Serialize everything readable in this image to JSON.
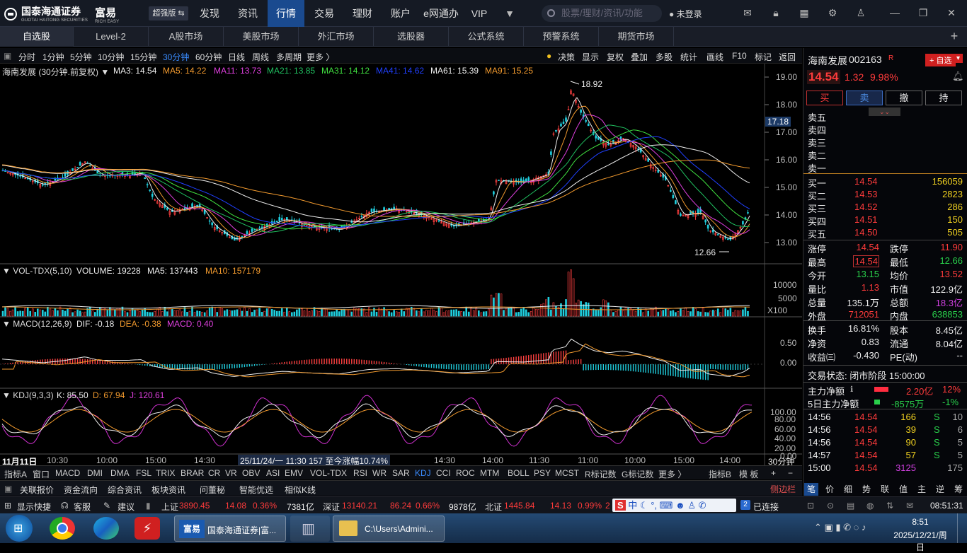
{
  "app": {
    "logo_name": "国泰海通证券",
    "logo_sub": "GUOTAI HAITONG SECURITIES",
    "brand": "富易",
    "brand_sub": "RICH EASY",
    "edition": "超强版 ⇆"
  },
  "top_nav": [
    "发现",
    "资讯",
    "行情",
    "交易",
    "理财",
    "账户",
    "e网通办",
    "VIP"
  ],
  "top_nav_active": "行情",
  "search_placeholder": "股票/理财/资讯/功能",
  "login": "未登录",
  "market_tabs": [
    "自选股",
    "Level-2",
    "A股市场",
    "美股市场",
    "外汇市场",
    "选股器",
    "公式系统",
    "预警系统",
    "期货市场"
  ],
  "periods": [
    "分时",
    "1分钟",
    "5分钟",
    "10分钟",
    "15分钟",
    "30分钟",
    "60分钟",
    "日线",
    "周线",
    "多周期",
    "更多 〉"
  ],
  "period_selected": "30分钟",
  "chart_tools": [
    "决策",
    "显示",
    "复权",
    "叠加",
    "多股",
    "统计",
    "画线",
    "F10",
    "标记",
    "返回"
  ],
  "main_legend": {
    "title": "海南发展 (30分钟.前复权) ▼",
    "ma3": "MA3: 14.54",
    "ma5": "MA5: 14.22",
    "ma11": "MA11: 13.73",
    "ma21": "MA21: 13.85",
    "ma31": "MA31: 14.12",
    "ma41": "MA41: 14.62",
    "ma61": "MA61: 15.39",
    "ma91": "MA91: 15.25"
  },
  "price_axis": [
    "19.00",
    "18.00",
    "17.00",
    "16.00",
    "15.00",
    "14.00",
    "13.00"
  ],
  "price_marker": "17.18",
  "high_label": "18.92",
  "low_label": "12.66",
  "vol_legend": {
    "name": "VOL-TDX(5,10)",
    "volume": "VOLUME: 19228",
    "ma5": "MA5: 137443",
    "ma10": "MA10: 157179"
  },
  "vol_axis": [
    "10000",
    "5000",
    "X100"
  ],
  "macd_legend": {
    "name": "MACD(12,26,9)",
    "dif": "DIF: -0.18",
    "dea": "DEA: -0.38",
    "macd": "MACD: 0.40"
  },
  "macd_axis": [
    "0.50",
    "0.00"
  ],
  "kdj_legend": {
    "name": "KDJ(9,3,3)",
    "k": "K: 85.50",
    "d": "D: 67.94",
    "j": "J: 120.61"
  },
  "kdj_axis": [
    "100.00",
    "80.00",
    "60.00",
    "40.00",
    "20.00",
    "0.00"
  ],
  "time_axis": {
    "start": "11月11日",
    "labels": [
      "10:30",
      "10:00",
      "15:00",
      "14:30",
      "14:30",
      "14:00",
      "11:30",
      "11:00",
      "10:00",
      "15:00",
      "14:00"
    ],
    "info": "25/11/24/一 11:30 157 至今涨幅10.74%",
    "period": "30分钟"
  },
  "indicators": [
    "指标A",
    "窗口",
    "MACD",
    "DMI",
    "DMA",
    "FSL",
    "TRIX",
    "BRAR",
    "CR",
    "VR",
    "OBV",
    "ASI",
    "EMV",
    "VOL-TDX",
    "RSI",
    "WR",
    "SAR",
    "KDJ",
    "CCI",
    "ROC",
    "MTM",
    "BOLL",
    "PSY",
    "MCST",
    "R标记数",
    "G标记数",
    "更多 〉",
    "指标B",
    "模 板",
    "+",
    "−"
  ],
  "indicator_selected": "KDJ",
  "func_tabs": [
    "关联报价",
    "资金流向",
    "综合资讯",
    "板块资讯",
    "问董秘",
    "智能优选",
    "相似K线"
  ],
  "side_bar_btn": "侧边栏",
  "quote": {
    "name": "海南发展",
    "code": "002163",
    "tag": "R",
    "add": "+ 自选",
    "price": "14.54",
    "change": "1.32",
    "pct": "9.98%",
    "buttons": [
      "买",
      "卖",
      "撤",
      "持"
    ],
    "sells": [
      "卖五",
      "卖四",
      "卖三",
      "卖二",
      "卖一"
    ],
    "buys": [
      [
        "买一",
        "14.54",
        "156059"
      ],
      [
        "买二",
        "14.53",
        "2823"
      ],
      [
        "买三",
        "14.52",
        "286"
      ],
      [
        "买四",
        "14.51",
        "150"
      ],
      [
        "买五",
        "14.50",
        "505"
      ]
    ],
    "stats": [
      [
        "涨停",
        "14.54",
        "跌停",
        "11.90"
      ],
      [
        "最高",
        "14.54",
        "最低",
        "12.66"
      ],
      [
        "今开",
        "13.15",
        "均价",
        "13.52"
      ],
      [
        "量比",
        "1.13",
        "市值",
        "122.9亿"
      ],
      [
        "总量",
        "135.1万",
        "总额",
        "18.3亿"
      ],
      [
        "外盘",
        "712051",
        "内盘",
        "638853"
      ]
    ],
    "stats2": [
      [
        "换手",
        "16.81%",
        "股本",
        "8.45亿"
      ],
      [
        "净资",
        "0.83",
        "流通",
        "8.04亿"
      ],
      [
        "收益㈢",
        "-0.430",
        "PE(动)",
        "--"
      ]
    ],
    "trade_status": "交易状态: 闭市阶段 15:00:00",
    "flow": [
      [
        "主力净额",
        "2.20亿",
        "12%"
      ],
      [
        "5日主力净额",
        "-8575万",
        "-1%"
      ]
    ],
    "ticks": [
      [
        "14:56",
        "14.54",
        "166",
        "S",
        "10"
      ],
      [
        "14:56",
        "14.54",
        "39",
        "S",
        "6"
      ],
      [
        "14:56",
        "14.54",
        "90",
        "S",
        "5"
      ],
      [
        "14:57",
        "14.54",
        "57",
        "S",
        "5"
      ],
      [
        "15:00",
        "14.54",
        "3125",
        "",
        "175"
      ]
    ],
    "right_tabs": [
      "笔",
      "价",
      "细",
      "势",
      "联",
      "值",
      "主",
      "逆",
      "筹"
    ]
  },
  "status": {
    "shortcut": "显示快捷",
    "service": "客服",
    "suggest": "建议",
    "sh_name": "上证",
    "sh_val": "3890.45",
    "sh_chg": "14.08",
    "sh_pct": "0.36%",
    "sh_amt": "7381亿",
    "sz_name": "深证",
    "sz_val": "13140.21",
    "sz_chg": "86.24",
    "sz_pct": "0.66%",
    "sz_amt": "9878亿",
    "bz_name": "北证",
    "bz_val": "1445.84",
    "bz_chg": "14.13",
    "bz_pct": "0.99%",
    "bz_extra": "2",
    "conn_num": "2",
    "conn": "已连接",
    "time": "08:51:31"
  },
  "ime": "中",
  "taskbar": {
    "app1": "国泰海通证券|富...",
    "app2": "C:\\Users\\Admini...",
    "clock_time": "8:51",
    "clock_date": "2025/12/21/周日"
  },
  "colors": {
    "up": "#ff3b3b",
    "down": "#29d04b",
    "accent": "#1a4a8f"
  }
}
